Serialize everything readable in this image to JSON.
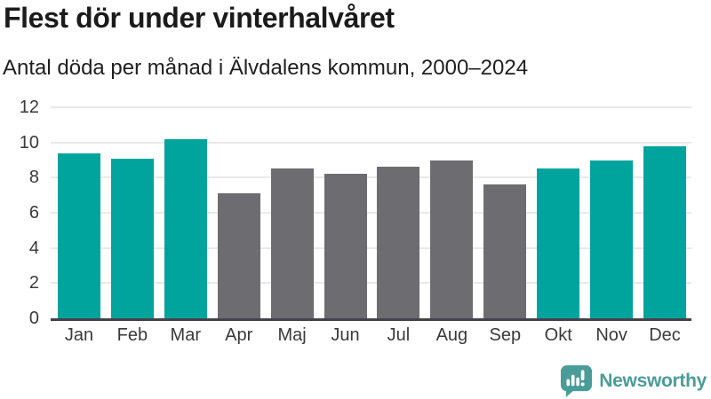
{
  "header": {
    "title": "Flest dör under vinterhalvåret",
    "subtitle": "Antal döda per månad i Älvdalens kommun, 2000–2024"
  },
  "chart_data": {
    "type": "bar",
    "title": "Flest dör under vinterhalvåret",
    "subtitle": "Antal döda per månad i Älvdalens kommun, 2000–2024",
    "categories": [
      "Jan",
      "Feb",
      "Mar",
      "Apr",
      "Maj",
      "Jun",
      "Jul",
      "Aug",
      "Sep",
      "Okt",
      "Nov",
      "Dec"
    ],
    "values": [
      9.4,
      9.1,
      10.2,
      7.1,
      8.5,
      8.2,
      8.6,
      9.0,
      7.6,
      8.5,
      9.0,
      9.8
    ],
    "highlighted": [
      true,
      true,
      true,
      false,
      false,
      false,
      false,
      false,
      false,
      true,
      true,
      true
    ],
    "xlabel": "",
    "ylabel": "",
    "ylim": [
      0,
      12
    ],
    "yticks": [
      0,
      2,
      4,
      6,
      8,
      10,
      12
    ],
    "grid": true,
    "legend": "none",
    "colors": {
      "highlight": "#00a49c",
      "muted": "#6d6c71",
      "gridline": "#e9e9e9",
      "axis_line": "#42424a",
      "tick_text": "#3a3a3a"
    }
  },
  "footer": {
    "brand": "Newsworthy",
    "logo_icon": "speech-bubble-bar-chart-icon",
    "brand_color": "#4a9c98"
  }
}
